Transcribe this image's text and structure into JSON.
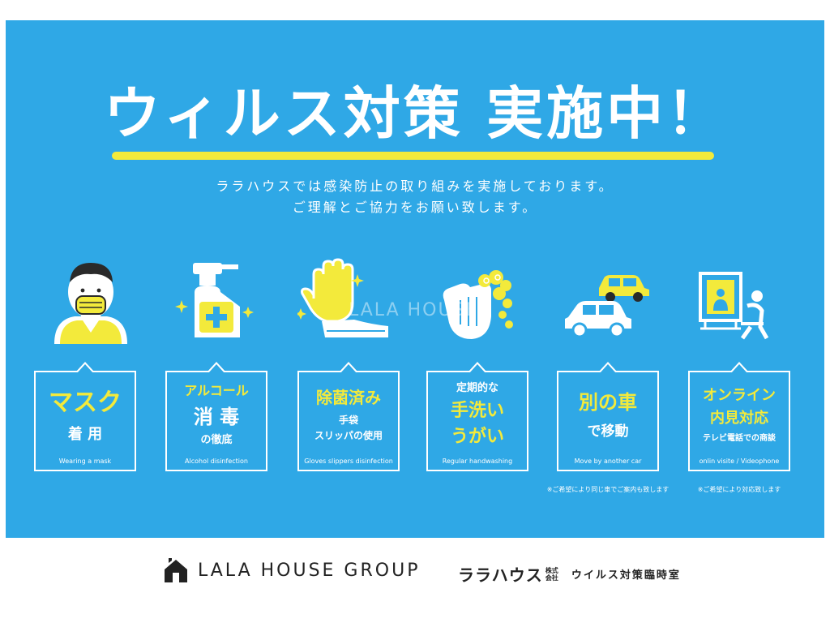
{
  "poster": {
    "title": "ウィルス対策 実施中！",
    "subtitle_line1": "ララハウスでは感染防止の取り組みを実施しております。",
    "subtitle_line2": "ご理解とご協力をお願い致します。",
    "watermark": "LALA HOUSE",
    "colors": {
      "background": "#2fa8e6",
      "accent": "#f3ea3b",
      "text": "#ffffff"
    }
  },
  "measures": [
    {
      "icon": "masked-person-icon",
      "line1": "マスク",
      "line2": "着 用",
      "en": "Wearing a mask"
    },
    {
      "icon": "spray-bottle-icon",
      "line1": "アルコール",
      "line2": "消 毒",
      "line3": "の徹底",
      "en": "Alcohol disinfection"
    },
    {
      "icon": "glove-slipper-icon",
      "line1": "除菌済み",
      "line2": "手袋",
      "line3": "スリッパの使用",
      "en": "Gloves slippers disinfection"
    },
    {
      "icon": "handwashing-icon",
      "line1": "定期的な",
      "line2": "手洗い",
      "line3": "うがい",
      "en": "Regular handwashing"
    },
    {
      "icon": "cars-icon",
      "line1": "別の車",
      "line2": "で移動",
      "en": "Move by another car",
      "note": "※ご希望により同じ車でご案内も致します"
    },
    {
      "icon": "video-call-icon",
      "line1": "オンライン",
      "line2": "内見対応",
      "line3": "テレビ電話での商談",
      "en": "onlin visite / Videophone",
      "note": "※ご希望により対応致します"
    }
  ],
  "footer": {
    "group_name": "LALA HOUSE GROUP",
    "company_kana": "ララハウス",
    "company_suffix": "株式会社",
    "office": "ウイルス対策臨時室"
  }
}
